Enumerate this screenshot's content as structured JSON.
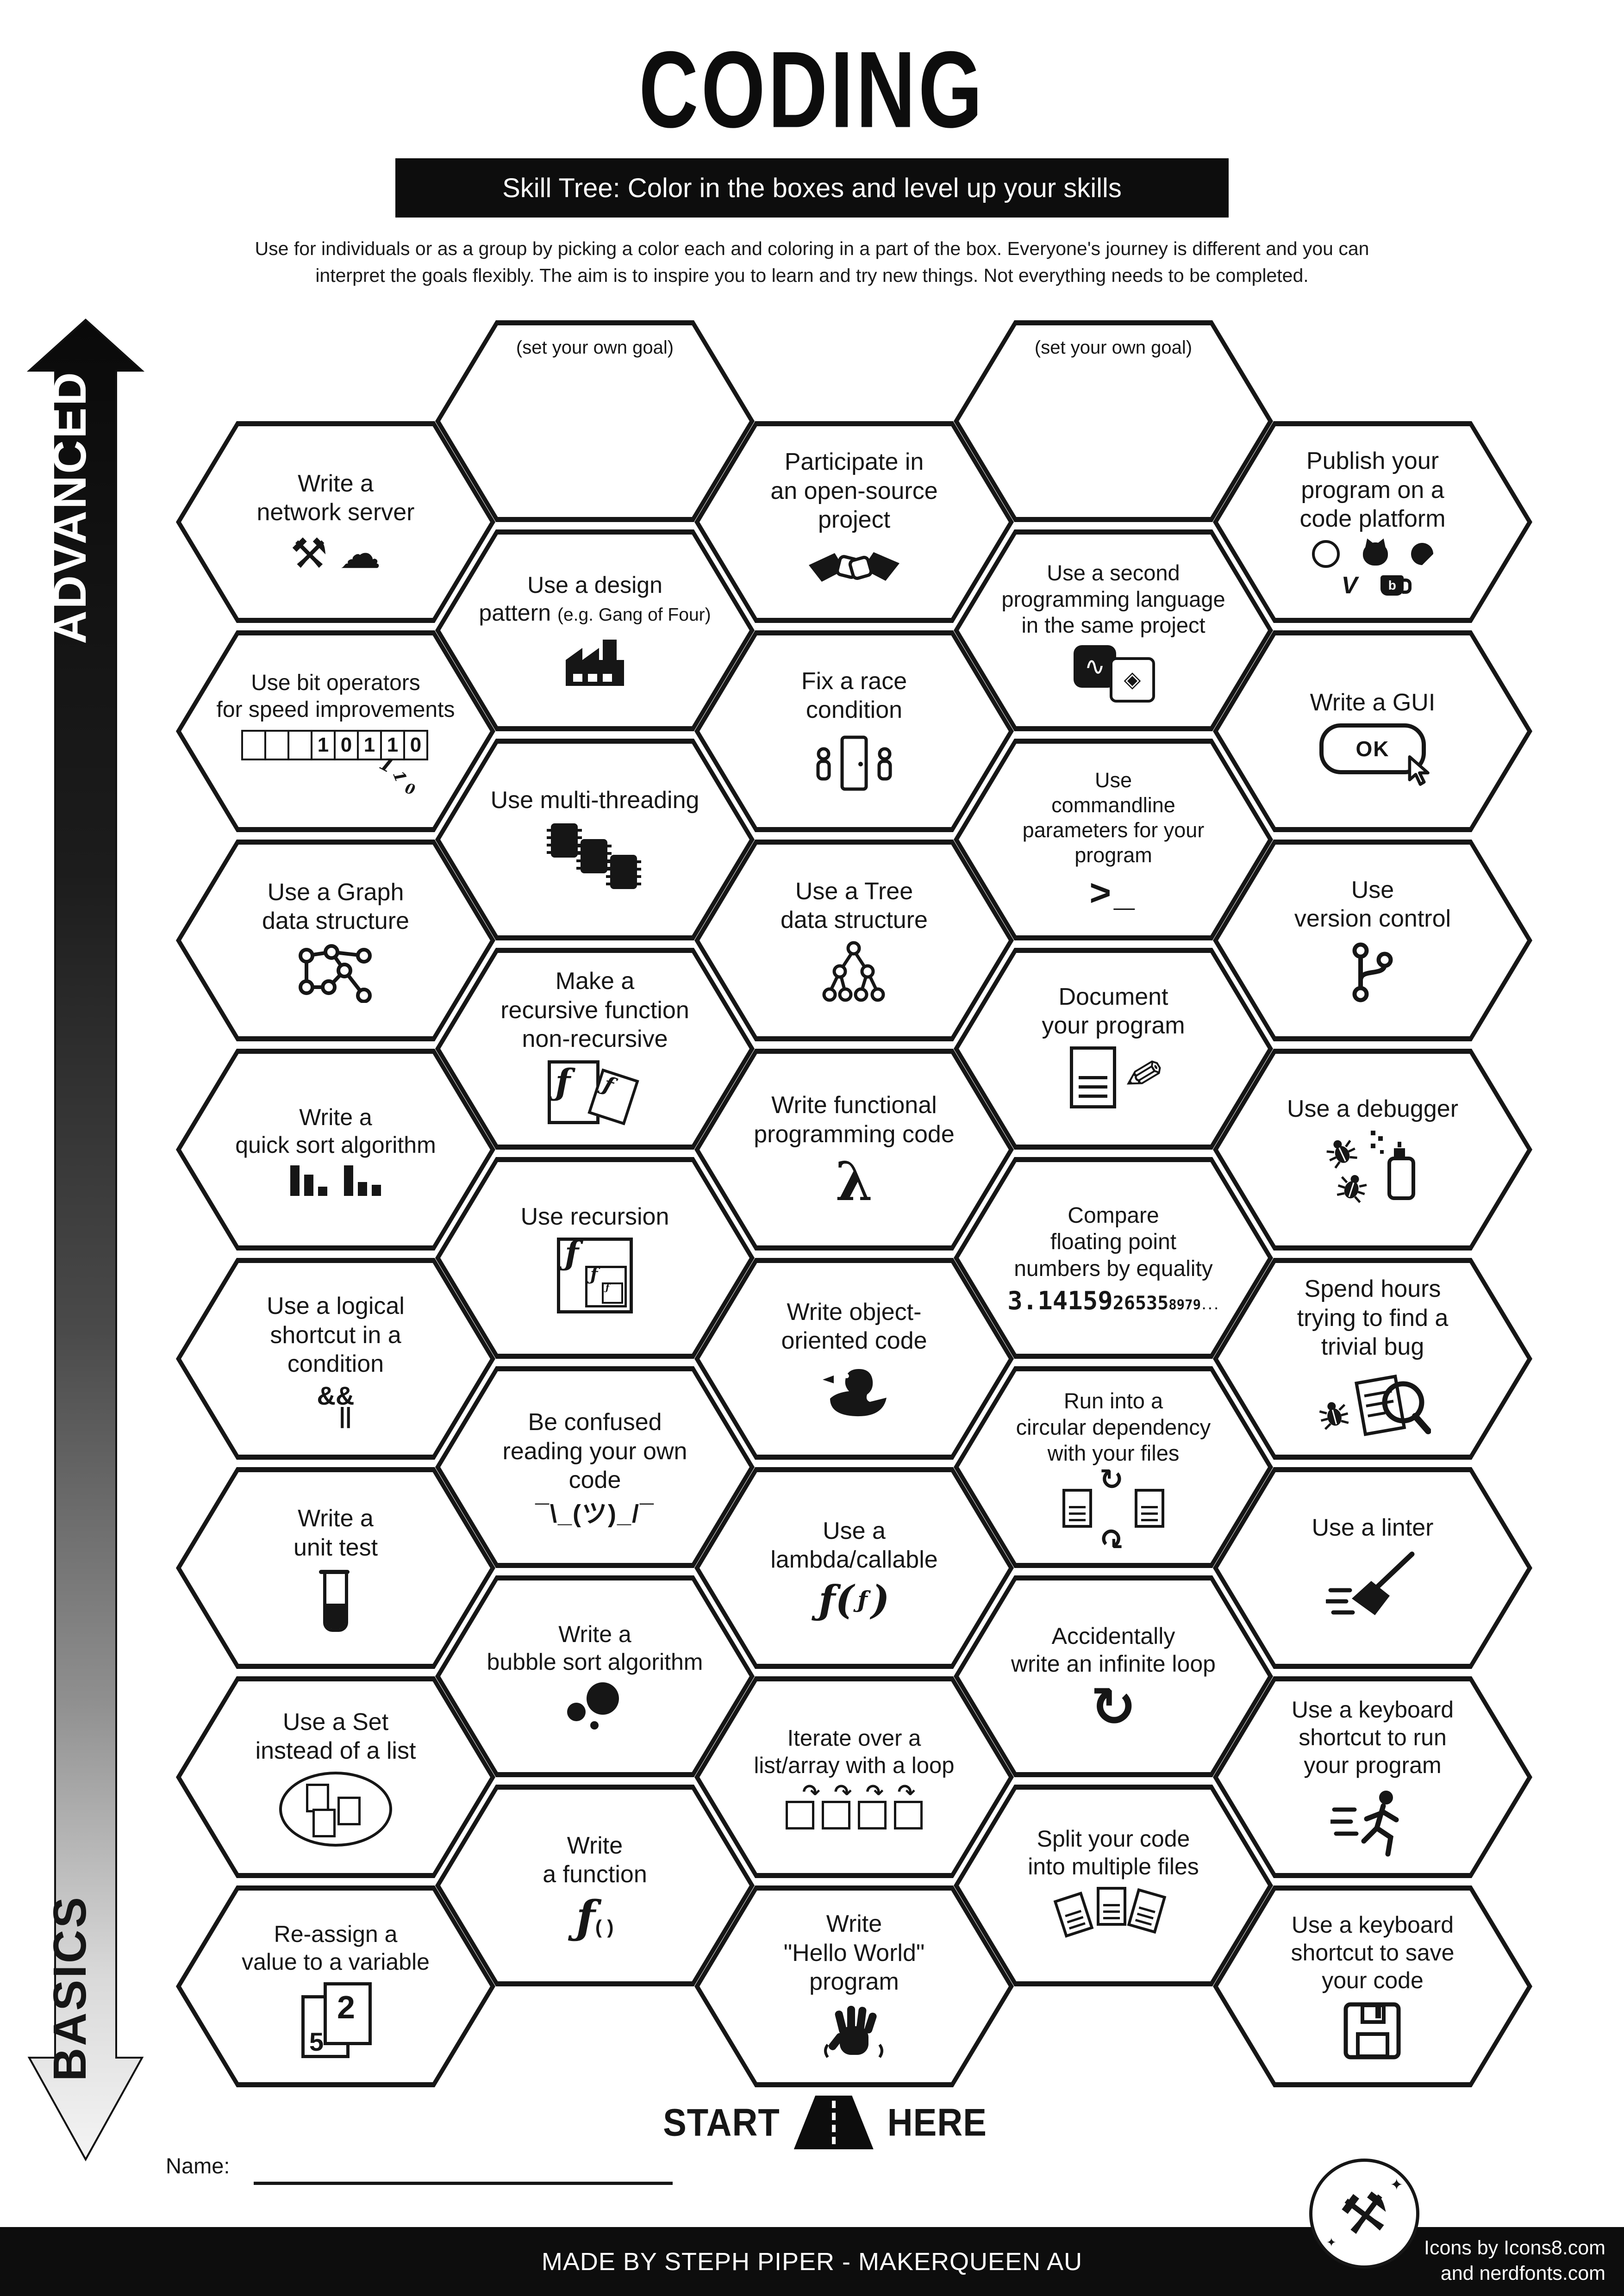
{
  "header": {
    "title": "CODING",
    "banner": "Skill Tree:  Color in the boxes and level up your skills",
    "subtitle_lines": [
      "Use for individuals or as a group by picking a color each and coloring in a part of the box.  Everyone's journey is different and you can",
      "interpret the goals flexibly.  The aim is to inspire you to learn and try new things. Not everything needs to be completed."
    ]
  },
  "axis": {
    "top_label": "ADVANCED",
    "bottom_label": "BASICS"
  },
  "start_marker": {
    "left": "START",
    "right": "HERE",
    "icon": "road-icon"
  },
  "name_field": {
    "label": "Name:"
  },
  "footer": {
    "credit": "MADE BY STEPH PIPER  -  MAKERQUEEN AU",
    "icons_credit_lines": [
      "Icons by Icons8.com",
      "and nerdfonts.com"
    ],
    "badge_icon": "crossed-tools-icon"
  },
  "colors": {
    "ink": "#161616",
    "paper": "#ffffff"
  },
  "hexes": [
    {
      "col": 0,
      "row": 0,
      "lines": [
        "Write a",
        "network server"
      ],
      "icon": "nails-cloud-icon"
    },
    {
      "col": 0,
      "row": 1,
      "lines": [
        "Use bit operators",
        "for speed improvements"
      ],
      "icon": "bit-pattern-icon",
      "icon_text": {
        "cells": "10110",
        "falling": [
          "1",
          "1",
          "0"
        ]
      },
      "fs": 48
    },
    {
      "col": 0,
      "row": 2,
      "lines": [
        "Use a Graph",
        "data structure"
      ],
      "icon": "graph-icon"
    },
    {
      "col": 0,
      "row": 3,
      "lines": [
        "Write a",
        "quick sort algorithm"
      ],
      "icon": "sort-bars-icon",
      "fs": 50
    },
    {
      "col": 0,
      "row": 4,
      "lines": [
        "Use a logical",
        "shortcut in a",
        "condition"
      ],
      "icon": "logical-operators-icon",
      "icon_text": {
        "top": "&&",
        "bottom": "||"
      }
    },
    {
      "col": 0,
      "row": 5,
      "lines": [
        "Write a",
        "unit test"
      ],
      "icon": "test-tube-icon"
    },
    {
      "col": 0,
      "row": 6,
      "lines": [
        "Use a Set",
        "instead of a list"
      ],
      "icon": "set-ellipse-icon"
    },
    {
      "col": 0,
      "row": 7,
      "lines": [
        "Re-assign a",
        "value to a variable"
      ],
      "icon": "value-cards-icon",
      "icon_text": {
        "back": "5",
        "front": "2"
      },
      "fs": 50
    },
    {
      "col": 1,
      "row": 0,
      "lines": [
        "(set your own goal)"
      ],
      "goal": true
    },
    {
      "col": 1,
      "row": 1,
      "lines": [
        "Use a design",
        "pattern ~(e.g. Gang of Four)~"
      ],
      "icon": "factory-icon",
      "fs": 50
    },
    {
      "col": 1,
      "row": 2,
      "lines": [
        "Use multi-threading"
      ],
      "icon": "chips-icon"
    },
    {
      "col": 1,
      "row": 3,
      "lines": [
        "Make a",
        "recursive function",
        "non-recursive"
      ],
      "icon": "recursive-docs-icon"
    },
    {
      "col": 1,
      "row": 4,
      "lines": [
        "Use recursion"
      ],
      "icon": "nested-f-icon",
      "icon_text": "ƒ"
    },
    {
      "col": 1,
      "row": 5,
      "lines": [
        "Be confused",
        "reading your own",
        "code"
      ],
      "icon": "shrug-icon",
      "icon_text": "¯\\_(ツ)_/¯"
    },
    {
      "col": 1,
      "row": 6,
      "lines": [
        "Write a",
        "bubble sort algorithm"
      ],
      "icon": "bubbles-icon",
      "fs": 50
    },
    {
      "col": 1,
      "row": 7,
      "lines": [
        "Write",
        "a function"
      ],
      "icon": "function-icon",
      "icon_text": "ƒ()"
    },
    {
      "col": 2,
      "row": 0,
      "lines": [
        "Participate in",
        "an open-source",
        "project"
      ],
      "icon": "handshake-icon"
    },
    {
      "col": 2,
      "row": 1,
      "lines": [
        "Fix a race",
        "condition"
      ],
      "icon": "race-door-icon"
    },
    {
      "col": 2,
      "row": 2,
      "lines": [
        "Use a Tree",
        "data structure"
      ],
      "icon": "tree-icon"
    },
    {
      "col": 2,
      "row": 3,
      "lines": [
        "Write functional",
        "programming code"
      ],
      "icon": "lambda-icon",
      "icon_text": "λ"
    },
    {
      "col": 2,
      "row": 4,
      "lines": [
        "Write object-",
        "oriented code"
      ],
      "icon": "duck-icon"
    },
    {
      "col": 2,
      "row": 5,
      "lines": [
        "Use a",
        "lambda/callable"
      ],
      "icon": "lambda-call-icon",
      "icon_text": "ƒ( ƒ )"
    },
    {
      "col": 2,
      "row": 6,
      "lines": [
        "Iterate over a",
        "list/array with a loop"
      ],
      "icon": "iterate-boxes-icon",
      "fs": 49
    },
    {
      "col": 2,
      "row": 7,
      "lines": [
        "Write",
        "\"Hello World\"",
        "program"
      ],
      "icon": "wave-hand-icon"
    },
    {
      "col": 3,
      "row": 0,
      "lines": [
        "(set your own goal)"
      ],
      "goal": true
    },
    {
      "col": 3,
      "row": 1,
      "lines": [
        "Use a second",
        "programming language",
        "in the same project"
      ],
      "icon": "python-ruby-icon",
      "fs": 47
    },
    {
      "col": 3,
      "row": 2,
      "lines": [
        "Use",
        "commandline",
        "parameters for your",
        "program"
      ],
      "icon": "terminal-icon",
      "icon_text": ">_",
      "fs": 45
    },
    {
      "col": 3,
      "row": 3,
      "lines": [
        "Document",
        "your program"
      ],
      "icon": "doc-pen-icon"
    },
    {
      "col": 3,
      "row": 4,
      "lines": [
        "Compare",
        "floating point",
        "numbers by equality"
      ],
      "icon": "pi-digits-icon",
      "icon_text": [
        "3.14159",
        "26535",
        "8979",
        "..."
      ],
      "fs": 48
    },
    {
      "col": 3,
      "row": 5,
      "lines": [
        "Run into a",
        "circular dependency",
        "with your files"
      ],
      "icon": "docs-cycle-icon",
      "fs": 47
    },
    {
      "col": 3,
      "row": 6,
      "lines": [
        "Accidentally",
        "write an infinite loop"
      ],
      "icon": "infinite-loop-icon",
      "icon_text": "↻",
      "fs": 50
    },
    {
      "col": 3,
      "row": 7,
      "lines": [
        "Split your code",
        "into multiple files"
      ],
      "icon": "docs-trio-icon",
      "fs": 50
    },
    {
      "col": 4,
      "row": 0,
      "lines": [
        "Publish your",
        "program on a",
        "code platform"
      ],
      "icon": "platform-logos-icon"
    },
    {
      "col": 4,
      "row": 1,
      "lines": [
        "Write a GUI"
      ],
      "icon": "ok-button-icon",
      "icon_text": "OK"
    },
    {
      "col": 4,
      "row": 2,
      "lines": [
        "Use",
        "version control"
      ],
      "icon": "git-branch-icon"
    },
    {
      "col": 4,
      "row": 3,
      "lines": [
        "Use a debugger"
      ],
      "icon": "bugs-spray-icon"
    },
    {
      "col": 4,
      "row": 4,
      "lines": [
        "Spend hours",
        "trying to find a",
        "trivial bug"
      ],
      "icon": "bug-magnifier-icon"
    },
    {
      "col": 4,
      "row": 5,
      "lines": [
        "Use a linter"
      ],
      "icon": "broom-icon"
    },
    {
      "col": 4,
      "row": 6,
      "lines": [
        "Use a keyboard",
        "shortcut to run",
        "your program"
      ],
      "icon": "runner-icon",
      "fs": 50
    },
    {
      "col": 4,
      "row": 7,
      "lines": [
        "Use a keyboard",
        "shortcut to save",
        "your code"
      ],
      "icon": "floppy-icon",
      "fs": 50
    }
  ]
}
